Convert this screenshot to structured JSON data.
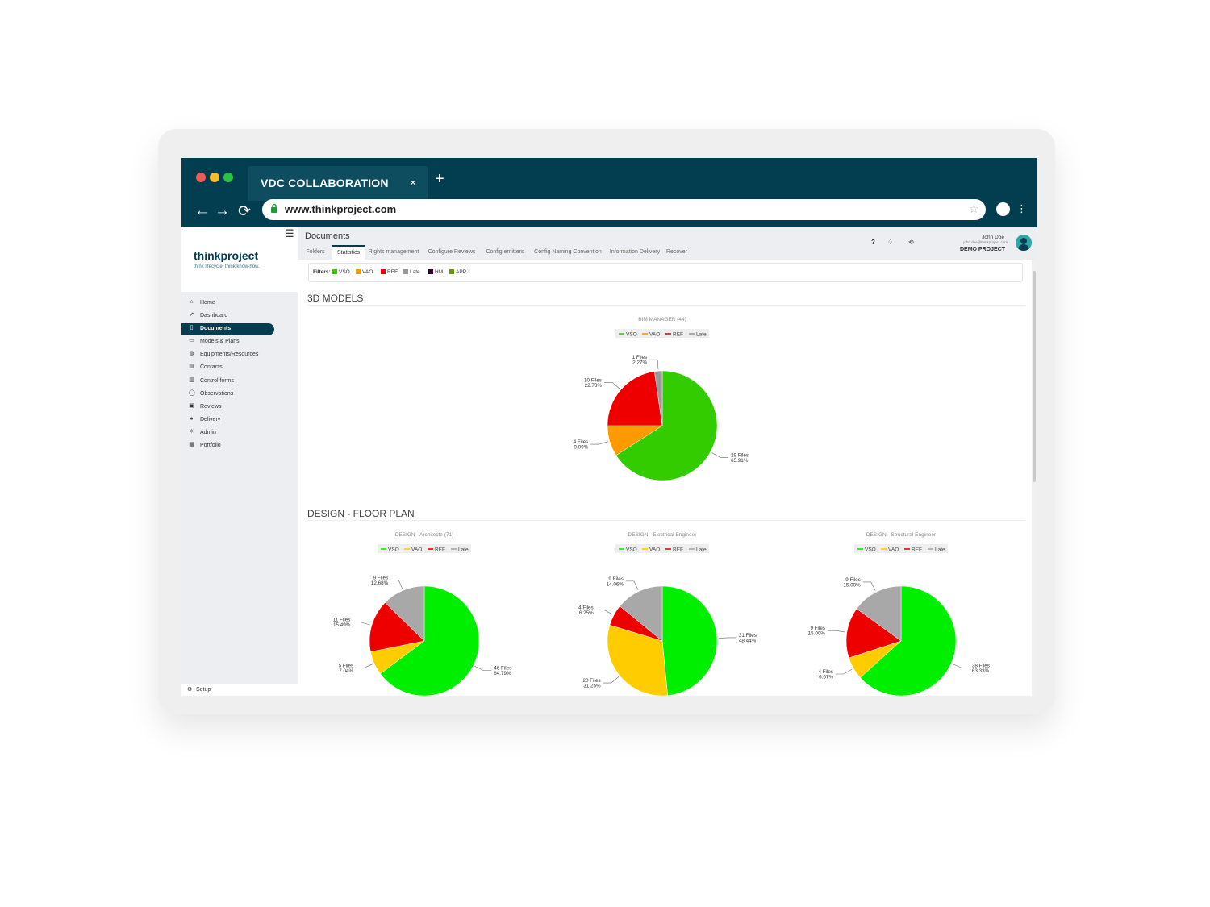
{
  "browser": {
    "tab_title": "VDC COLLABORATION",
    "tab_close": "×",
    "new_tab": "+",
    "url": "www.thinkproject.com",
    "traffic_colors": [
      "#ee5b52",
      "#f6bd2f",
      "#2ac341"
    ]
  },
  "sidebar": {
    "logo": "thínkproject",
    "tagline": "think lifecycle. think know-how.",
    "menu_icon": "☰",
    "items": [
      {
        "label": "Home",
        "icon": "⌂"
      },
      {
        "label": "Dashboard",
        "icon": "↗"
      },
      {
        "label": "Documents",
        "icon": "▯",
        "active": true
      },
      {
        "label": "Models & Plans",
        "icon": "▭"
      },
      {
        "label": "Equipments/Resources",
        "icon": "◍"
      },
      {
        "label": "Contacts",
        "icon": "▤"
      },
      {
        "label": "Control forms",
        "icon": "▥"
      },
      {
        "label": "Observations",
        "icon": "◯"
      },
      {
        "label": "Reviews",
        "icon": "▣"
      },
      {
        "label": "Delivery",
        "icon": "●"
      },
      {
        "label": "Admin",
        "icon": "✳"
      },
      {
        "label": "Portfolio",
        "icon": "▦"
      }
    ],
    "setup": "Setup"
  },
  "header": {
    "title": "Documents",
    "tabs": [
      "Folders",
      "Statistics",
      "Rights management",
      "Configure Reviews",
      "Config emitters",
      "Config Naming Convention",
      "Information Delivery",
      "Recover"
    ],
    "active_tab": "Statistics",
    "help": "?",
    "user_name": "John Doe",
    "user_email": "john.doe@thinkproject.com",
    "project": "DEMO PROJECT"
  },
  "filters": {
    "label": "Filters:",
    "items": [
      {
        "label": "VSO",
        "color": "#33cc00"
      },
      {
        "label": "VAO",
        "color": "#ff9900"
      },
      {
        "label": "REF",
        "color": "#ee0000"
      },
      {
        "label": "Late",
        "color": "#999999"
      },
      {
        "label": "HM",
        "color": "#330033"
      },
      {
        "label": "APP",
        "color": "#669900"
      }
    ]
  },
  "sections": {
    "models": "3D MODELS",
    "floor_plan": "DESIGN - FLOOR PLAN"
  },
  "chart_data": [
    {
      "type": "pie",
      "title": "BIM MANAGER (44)",
      "legend": [
        "VSO",
        "VAO",
        "REF",
        "Late"
      ],
      "slices": [
        {
          "name": "VSO",
          "files": 29,
          "percent": 65.91,
          "label": "29 Files",
          "pct_label": "65.91%",
          "color": "#33cc00"
        },
        {
          "name": "VAO",
          "files": 4,
          "percent": 9.09,
          "label": "4 Files",
          "pct_label": "9.09%",
          "color": "#ff9900"
        },
        {
          "name": "REF",
          "files": 10,
          "percent": 22.73,
          "label": "10 Files",
          "pct_label": "22.73%",
          "color": "#ee0000"
        },
        {
          "name": "Late",
          "files": 1,
          "percent": 2.27,
          "label": "1 Files",
          "pct_label": "2.27%",
          "color": "#999999"
        }
      ]
    },
    {
      "type": "pie",
      "title": "DESIGN - Architecte (71)",
      "legend": [
        "VSO",
        "VAO",
        "REF",
        "Late"
      ],
      "slices": [
        {
          "name": "VSO",
          "files": 46,
          "percent": 64.79,
          "label": "46 Files",
          "pct_label": "64.79%",
          "color": "#00ee00"
        },
        {
          "name": "VAO",
          "files": 5,
          "percent": 7.04,
          "label": "5 Files",
          "pct_label": "7.04%",
          "color": "#ffcc00"
        },
        {
          "name": "REF",
          "files": 11,
          "percent": 15.49,
          "label": "11 Files",
          "pct_label": "15.49%",
          "color": "#ee0000"
        },
        {
          "name": "Late",
          "files": 9,
          "percent": 12.68,
          "label": "9 Files",
          "pct_label": "12.68%",
          "color": "#a8a8a8"
        }
      ]
    },
    {
      "type": "pie",
      "title": "DESIGN - Electrical Engineer",
      "legend": [
        "VSO",
        "VAO",
        "REF",
        "Late"
      ],
      "slices": [
        {
          "name": "VSO",
          "files": 31,
          "percent": 48.44,
          "label": "31 Files",
          "pct_label": "48.44%",
          "color": "#00ee00"
        },
        {
          "name": "VAO",
          "files": 20,
          "percent": 31.25,
          "label": "20 Files",
          "pct_label": "31.25%",
          "color": "#ffcc00"
        },
        {
          "name": "REF",
          "files": 4,
          "percent": 6.25,
          "label": "4 Files",
          "pct_label": "6.25%",
          "color": "#ee0000"
        },
        {
          "name": "Late",
          "files": 9,
          "percent": 14.06,
          "label": "9 Files",
          "pct_label": "14.06%",
          "color": "#a8a8a8"
        }
      ]
    },
    {
      "type": "pie",
      "title": "DESIGN - Structural Engineer",
      "legend": [
        "VSO",
        "VAO",
        "REF",
        "Late"
      ],
      "slices": [
        {
          "name": "VSO",
          "files": 38,
          "percent": 63.33,
          "label": "38 Files",
          "pct_label": "63.33%",
          "color": "#00ee00"
        },
        {
          "name": "VAO",
          "files": 4,
          "percent": 6.67,
          "label": "4 Files",
          "pct_label": "6.67%",
          "color": "#ffcc00"
        },
        {
          "name": "REF",
          "files": 9,
          "percent": 15.0,
          "label": "9 Files",
          "pct_label": "15.00%",
          "color": "#ee0000"
        },
        {
          "name": "Late",
          "files": 9,
          "percent": 15.0,
          "label": "9 Files",
          "pct_label": "15.00%",
          "color": "#a8a8a8"
        }
      ]
    }
  ]
}
